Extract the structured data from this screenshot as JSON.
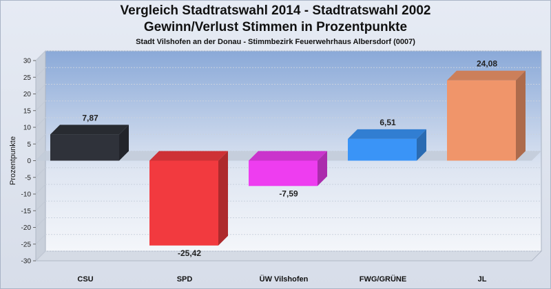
{
  "chart_data": {
    "type": "bar",
    "title": "Vergleich Stadtratswahl 2014 - Stadtratswahl 2002",
    "subtitle": "Gewinn/Verlust Stimmen in Prozentpunkte",
    "subtitle2": "Stadt Vilshofen an der Donau - Stimmbezirk  Feuerwehrhaus Albersdorf (0007)",
    "ylabel": "Prozentpunkte",
    "xlabel": "",
    "ylim": [
      -30,
      30
    ],
    "yticks": [
      30,
      25,
      20,
      15,
      10,
      5,
      0,
      -5,
      -10,
      -15,
      -20,
      -25,
      -30
    ],
    "grid": true,
    "categories": [
      "CSU",
      "SPD",
      "ÜW Vilshofen",
      "FWG/GRÜNE",
      "JL"
    ],
    "values": [
      7.87,
      -25.42,
      -7.59,
      6.51,
      24.08
    ],
    "value_labels": [
      "7,87",
      "-25,42",
      "-7,59",
      "6,51",
      "24,08"
    ],
    "colors": [
      "#2f323a",
      "#f23a3f",
      "#ee3df0",
      "#3a94f7",
      "#f0956a"
    ]
  }
}
